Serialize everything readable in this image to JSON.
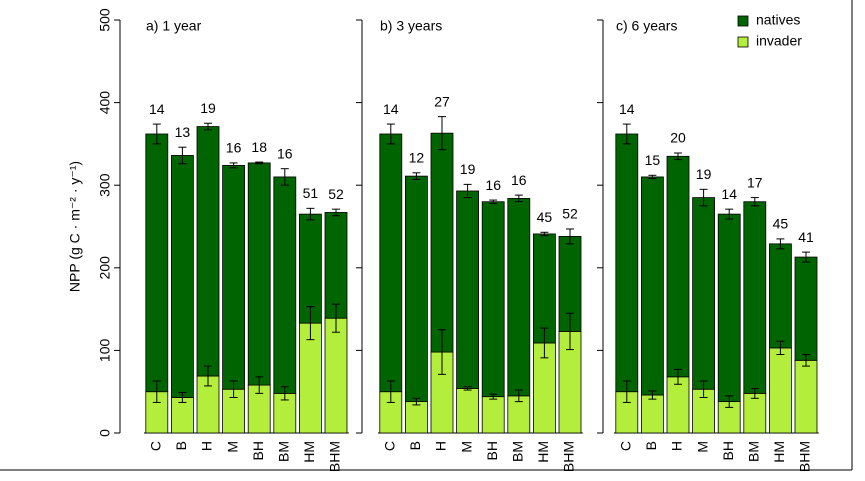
{
  "chart_data": [
    {
      "type": "bar",
      "stacked": true,
      "title": "a)  1 year",
      "ylabel": "NPP (g C · m⁻² · y⁻¹)",
      "categories": [
        "C",
        "B",
        "H",
        "M",
        "BH",
        "BM",
        "HM",
        "BHM"
      ],
      "series": [
        {
          "color": "#006400",
          "values": [
            312,
            293,
            302,
            271,
            269,
            262,
            132,
            128
          ],
          "errors": [
            12,
            10,
            4,
            3,
            1,
            10,
            7,
            4
          ]
        },
        {
          "color": "#b4ee3c",
          "values": [
            50,
            43,
            69,
            53,
            58,
            48,
            133,
            139
          ],
          "errors": [
            13,
            6,
            12,
            10,
            10,
            8,
            20,
            17
          ]
        }
      ],
      "annotations": [
        "14",
        "13",
        "19",
        "16",
        "18",
        "16",
        "51",
        "52"
      ],
      "ylim": [
        0,
        500
      ],
      "yticks": [
        0,
        100,
        200,
        300,
        400,
        500
      ],
      "tick_labels": true
    },
    {
      "type": "bar",
      "stacked": true,
      "title": "b)  3 years",
      "categories": [
        "C",
        "B",
        "H",
        "M",
        "BH",
        "BM",
        "HM",
        "BHM"
      ],
      "series": [
        {
          "color": "#006400",
          "values": [
            312,
            273,
            265,
            239,
            236,
            239,
            132,
            115
          ],
          "errors": [
            12,
            4,
            20,
            8,
            2,
            4,
            2,
            9
          ]
        },
        {
          "color": "#b4ee3c",
          "values": [
            50,
            38,
            98,
            54,
            44,
            45,
            109,
            123
          ],
          "errors": [
            13,
            4,
            27,
            2,
            3,
            7,
            18,
            22
          ]
        }
      ],
      "annotations": [
        "14",
        "12",
        "27",
        "19",
        "16",
        "16",
        "45",
        "52"
      ],
      "ylim": [
        0,
        500
      ],
      "yticks": [
        0,
        100,
        200,
        300,
        400,
        500
      ],
      "tick_labels": false
    },
    {
      "type": "bar",
      "stacked": true,
      "title": "c)  6 years",
      "categories": [
        "C",
        "B",
        "H",
        "M",
        "BH",
        "BM",
        "HM",
        "BHM"
      ],
      "series": [
        {
          "name": "natives",
          "color": "#006400",
          "values": [
            312,
            264,
            267,
            232,
            227,
            232,
            126,
            125
          ],
          "errors": [
            12,
            2,
            4,
            10,
            6,
            5,
            6,
            6
          ]
        },
        {
          "name": "invader",
          "color": "#b4ee3c",
          "values": [
            50,
            46,
            68,
            53,
            38,
            48,
            103,
            88
          ],
          "errors": [
            13,
            5,
            9,
            10,
            7,
            6,
            8,
            7
          ]
        }
      ],
      "annotations": [
        "14",
        "15",
        "20",
        "19",
        "14",
        "17",
        "45",
        "41"
      ],
      "ylim": [
        0,
        500
      ],
      "yticks": [
        0,
        100,
        200,
        300,
        400,
        500
      ],
      "tick_labels": false,
      "legend": "top-right"
    }
  ]
}
